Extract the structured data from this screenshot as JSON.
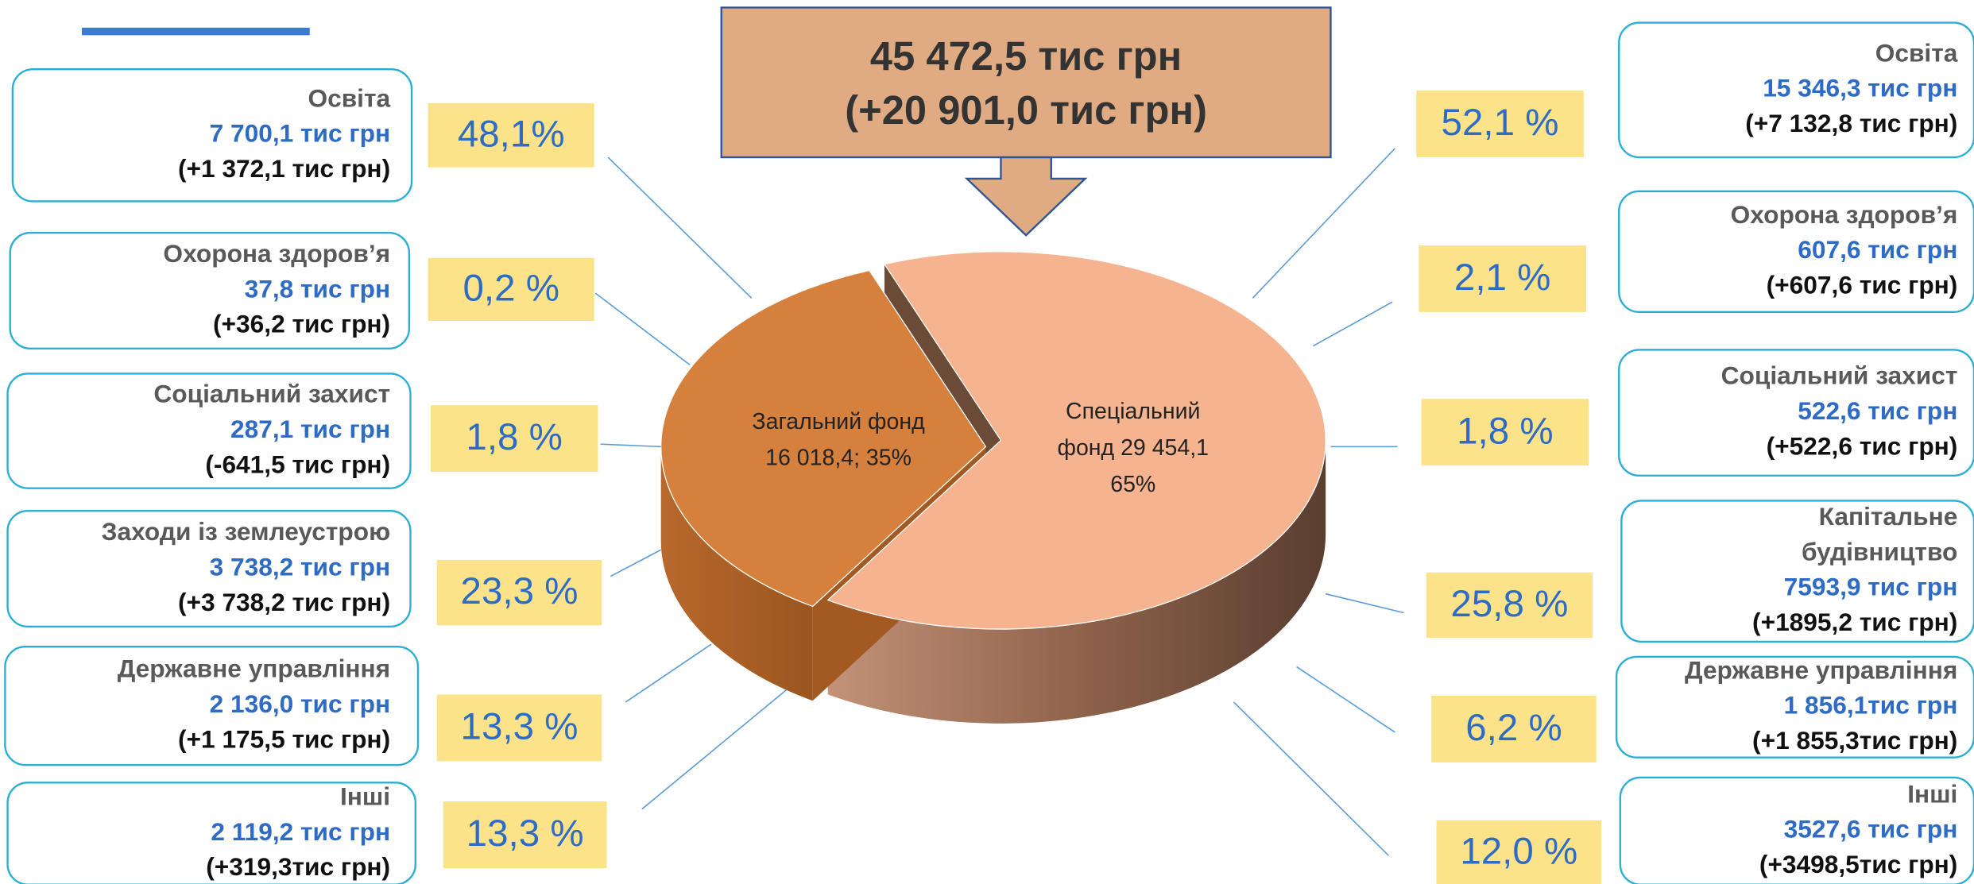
{
  "header": {
    "total": "45 472,5 тис грн",
    "change": "(+20 901,0 тис грн)"
  },
  "left": [
    {
      "name": [
        "Освіта"
      ],
      "amount": "7 700,1 тис грн",
      "change": "(+1 372,1 тис грн)",
      "share": "48,1%"
    },
    {
      "name": [
        "Охорона здоров’я"
      ],
      "amount": "37,8 тис грн",
      "change": "(+36,2 тис грн)",
      "share": "0,2 %"
    },
    {
      "name": [
        "Соціальний захист"
      ],
      "amount": "287,1 тис грн",
      "change": "(-641,5 тис грн)",
      "share": "1,8 %"
    },
    {
      "name": [
        "Заходи із землеустрою"
      ],
      "amount": "3 738,2 тис грн",
      "change": "(+3 738,2 тис грн)",
      "share": "23,3 %"
    },
    {
      "name": [
        "Державне управління"
      ],
      "amount": "2 136,0 тис грн",
      "change": "(+1 175,5 тис грн)",
      "share": "13,3 %"
    },
    {
      "name": [
        "Інші"
      ],
      "amount": "2 119,2 тис грн",
      "change": "(+319,3тис грн)",
      "share": "13,3 %"
    }
  ],
  "right": [
    {
      "name": [
        "Освіта"
      ],
      "amount": "15 346,3 тис грн",
      "change": "(+7 132,8 тис грн)",
      "share": "52,1 %"
    },
    {
      "name": [
        "Охорона здоров’я"
      ],
      "amount": "607,6 тис грн",
      "change": "(+607,6 тис грн)",
      "share": "2,1 %"
    },
    {
      "name": [
        "Соціальний захист"
      ],
      "amount": "522,6 тис грн",
      "change": "(+522,6 тис грн)",
      "share": "1,8 %"
    },
    {
      "name": [
        "Капітальне",
        "будівництво"
      ],
      "amount": "7593,9 тис грн",
      "change": "(+1895,2 тис грн)",
      "share": "25,8 %"
    },
    {
      "name": [
        "Державне управління"
      ],
      "amount": "1 856,1тис грн",
      "change": "(+1 855,3тис грн)",
      "share": "6,2 %"
    },
    {
      "name": [
        "Інші"
      ],
      "amount": "3527,6 тис грн",
      "change": "(+3498,5тис грн)",
      "share": "12,0 %"
    }
  ],
  "chart_data": {
    "type": "pie",
    "values": [
      16018.4,
      29454.1
    ],
    "label_lines": [
      [
        "Загальний фонд",
        "16 018,4; 35%"
      ],
      [
        "Спеціальний",
        "фонд 29 454,1",
        "65%"
      ]
    ],
    "colors": [
      "#d6803d",
      "#f5b48f"
    ]
  }
}
